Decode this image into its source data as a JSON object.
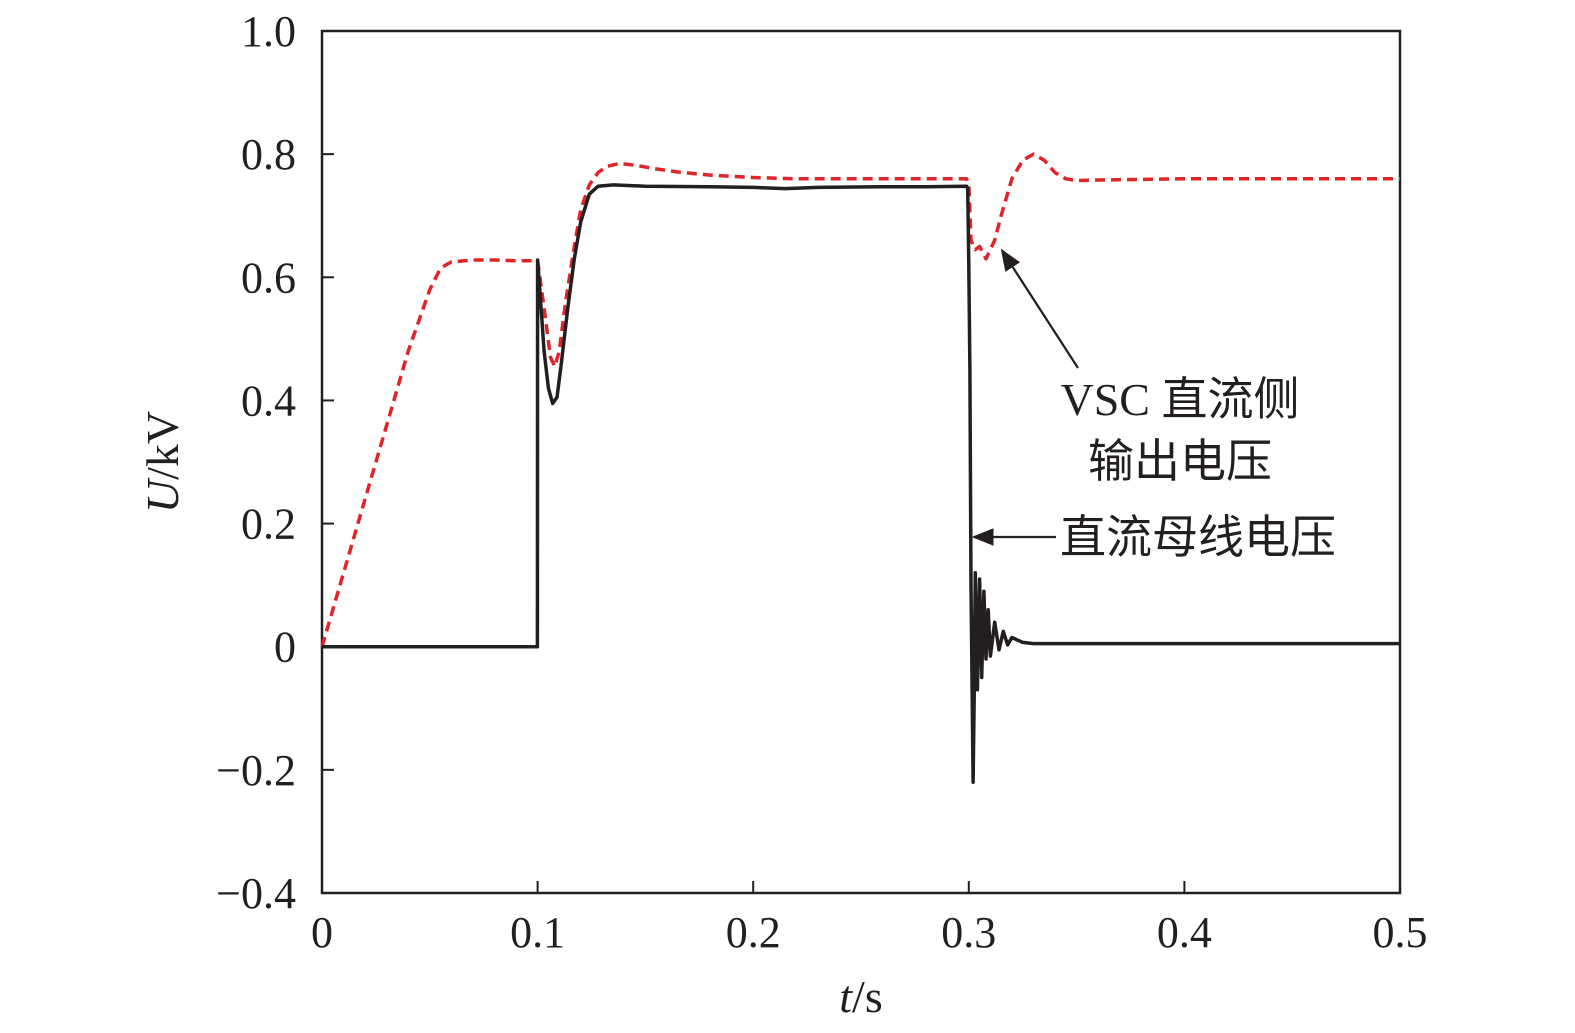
{
  "chart_data": {
    "type": "line",
    "title": "",
    "xlabel_var": "t",
    "xlabel_unit": "/s",
    "ylabel_var": "U",
    "ylabel_unit": "/kV",
    "xlim": [
      0,
      0.5
    ],
    "ylim": [
      -0.4,
      1.0
    ],
    "x_ticks": [
      0,
      0.1,
      0.2,
      0.3,
      0.4,
      0.5
    ],
    "x_tick_labels": [
      "0",
      "0.1",
      "0.2",
      "0.3",
      "0.4",
      "0.5"
    ],
    "y_ticks": [
      -0.4,
      -0.2,
      0,
      0.2,
      0.4,
      0.6,
      0.8,
      1.0
    ],
    "y_tick_labels": [
      "−0.4",
      "−0.2",
      "0",
      "0.2",
      "0.4",
      "0.6",
      "0.8",
      "1.0"
    ],
    "grid": false,
    "series": [
      {
        "name": "VSC 直流侧输出电压",
        "color": "#e02428",
        "style": "dashed",
        "points": [
          [
            0,
            0
          ],
          [
            0.01,
            0.12
          ],
          [
            0.02,
            0.24
          ],
          [
            0.03,
            0.36
          ],
          [
            0.04,
            0.48
          ],
          [
            0.05,
            0.58
          ],
          [
            0.055,
            0.615
          ],
          [
            0.06,
            0.625
          ],
          [
            0.07,
            0.628
          ],
          [
            0.08,
            0.628
          ],
          [
            0.09,
            0.627
          ],
          [
            0.1,
            0.627
          ],
          [
            0.103,
            0.55
          ],
          [
            0.106,
            0.47
          ],
          [
            0.108,
            0.455
          ],
          [
            0.11,
            0.48
          ],
          [
            0.113,
            0.56
          ],
          [
            0.117,
            0.65
          ],
          [
            0.12,
            0.71
          ],
          [
            0.124,
            0.75
          ],
          [
            0.128,
            0.77
          ],
          [
            0.132,
            0.78
          ],
          [
            0.138,
            0.785
          ],
          [
            0.145,
            0.782
          ],
          [
            0.155,
            0.776
          ],
          [
            0.165,
            0.771
          ],
          [
            0.18,
            0.766
          ],
          [
            0.2,
            0.762
          ],
          [
            0.22,
            0.76
          ],
          [
            0.25,
            0.76
          ],
          [
            0.27,
            0.76
          ],
          [
            0.29,
            0.76
          ],
          [
            0.299,
            0.76
          ],
          [
            0.3,
            0.75
          ],
          [
            0.301,
            0.66
          ],
          [
            0.303,
            0.645
          ],
          [
            0.305,
            0.65
          ],
          [
            0.308,
            0.63
          ],
          [
            0.312,
            0.66
          ],
          [
            0.315,
            0.7
          ],
          [
            0.32,
            0.76
          ],
          [
            0.325,
            0.79
          ],
          [
            0.33,
            0.8
          ],
          [
            0.335,
            0.79
          ],
          [
            0.34,
            0.77
          ],
          [
            0.345,
            0.76
          ],
          [
            0.35,
            0.757
          ],
          [
            0.36,
            0.758
          ],
          [
            0.38,
            0.759
          ],
          [
            0.4,
            0.76
          ],
          [
            0.45,
            0.76
          ],
          [
            0.5,
            0.76
          ]
        ]
      },
      {
        "name": "直流母线电压",
        "color": "#231f20",
        "style": "solid",
        "points": [
          [
            0,
            0
          ],
          [
            0.0999,
            0
          ],
          [
            0.1,
            0.628
          ],
          [
            0.101,
            0.58
          ],
          [
            0.103,
            0.48
          ],
          [
            0.105,
            0.42
          ],
          [
            0.107,
            0.395
          ],
          [
            0.109,
            0.405
          ],
          [
            0.111,
            0.46
          ],
          [
            0.114,
            0.55
          ],
          [
            0.117,
            0.63
          ],
          [
            0.12,
            0.69
          ],
          [
            0.124,
            0.735
          ],
          [
            0.128,
            0.748
          ],
          [
            0.135,
            0.75
          ],
          [
            0.15,
            0.748
          ],
          [
            0.18,
            0.747
          ],
          [
            0.2,
            0.746
          ],
          [
            0.215,
            0.744
          ],
          [
            0.23,
            0.746
          ],
          [
            0.26,
            0.747
          ],
          [
            0.28,
            0.747
          ],
          [
            0.299,
            0.748
          ],
          [
            0.2995,
            0.745
          ],
          [
            0.3,
            0.62
          ],
          [
            0.3005,
            0.45
          ],
          [
            0.301,
            0.1
          ],
          [
            0.3015,
            -0.05
          ],
          [
            0.302,
            -0.22
          ],
          [
            0.3025,
            -0.08
          ],
          [
            0.303,
            0.12
          ],
          [
            0.304,
            -0.07
          ],
          [
            0.305,
            0.11
          ],
          [
            0.306,
            -0.05
          ],
          [
            0.307,
            0.09
          ],
          [
            0.308,
            -0.02
          ],
          [
            0.309,
            0.06
          ],
          [
            0.31,
            -0.015
          ],
          [
            0.312,
            0.04
          ],
          [
            0.314,
            -0.005
          ],
          [
            0.316,
            0.025
          ],
          [
            0.318,
            0.003
          ],
          [
            0.32,
            0.015
          ],
          [
            0.325,
            0.007
          ],
          [
            0.33,
            0.005
          ],
          [
            0.35,
            0.005
          ],
          [
            0.4,
            0.005
          ],
          [
            0.45,
            0.005
          ],
          [
            0.5,
            0.005
          ]
        ]
      }
    ],
    "annotations": [
      {
        "lines": [
          "VSC 直流侧",
          "输出电压"
        ],
        "target": [
          0.314,
          0.65
        ]
      },
      {
        "lines": [
          "直流母线电压"
        ],
        "target": [
          0.3005,
          0.17
        ]
      }
    ]
  }
}
